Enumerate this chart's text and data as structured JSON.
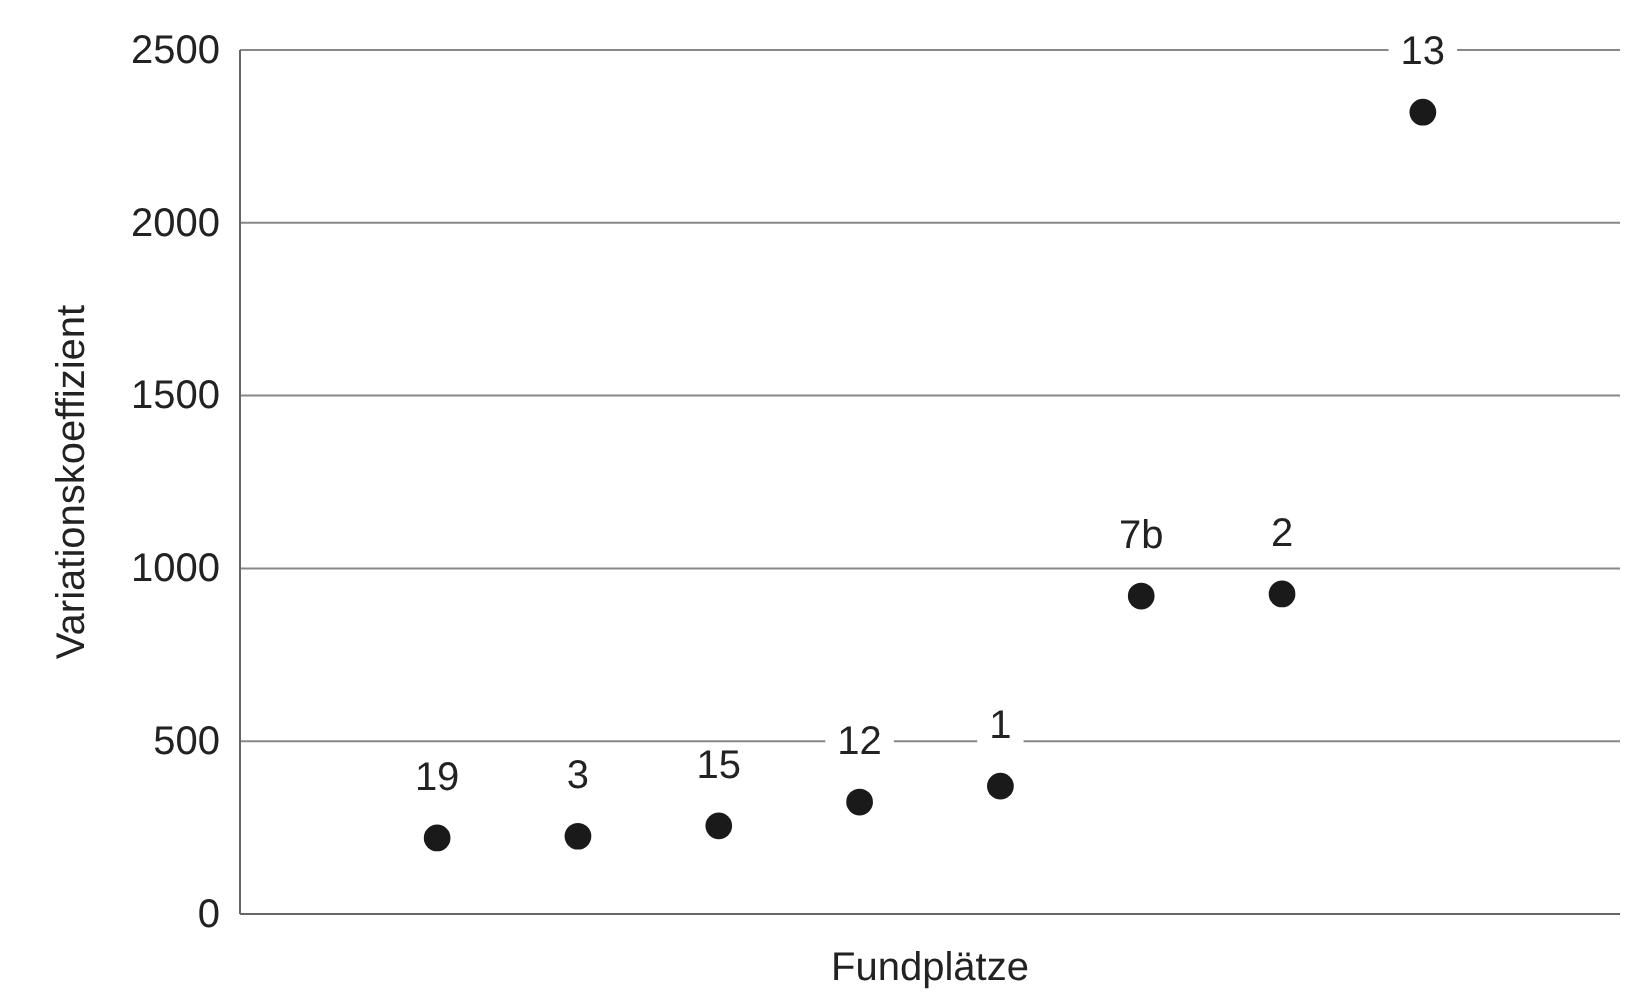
{
  "chart_data": {
    "type": "scatter",
    "xlabel": "Fundplätze",
    "ylabel": "Variationskoeffizient",
    "categories": [
      "19",
      "3",
      "15",
      "12",
      "1",
      "7b",
      "2",
      "13"
    ],
    "series": [
      {
        "color": "#1a1a1a",
        "values": [
          220,
          225,
          255,
          324,
          370,
          920,
          926,
          2320
        ]
      }
    ],
    "ylim": [
      0,
      2500
    ],
    "yticks": [
      0,
      500,
      1000,
      1500,
      2000,
      2500
    ],
    "grid": "y",
    "marker": "circle"
  }
}
